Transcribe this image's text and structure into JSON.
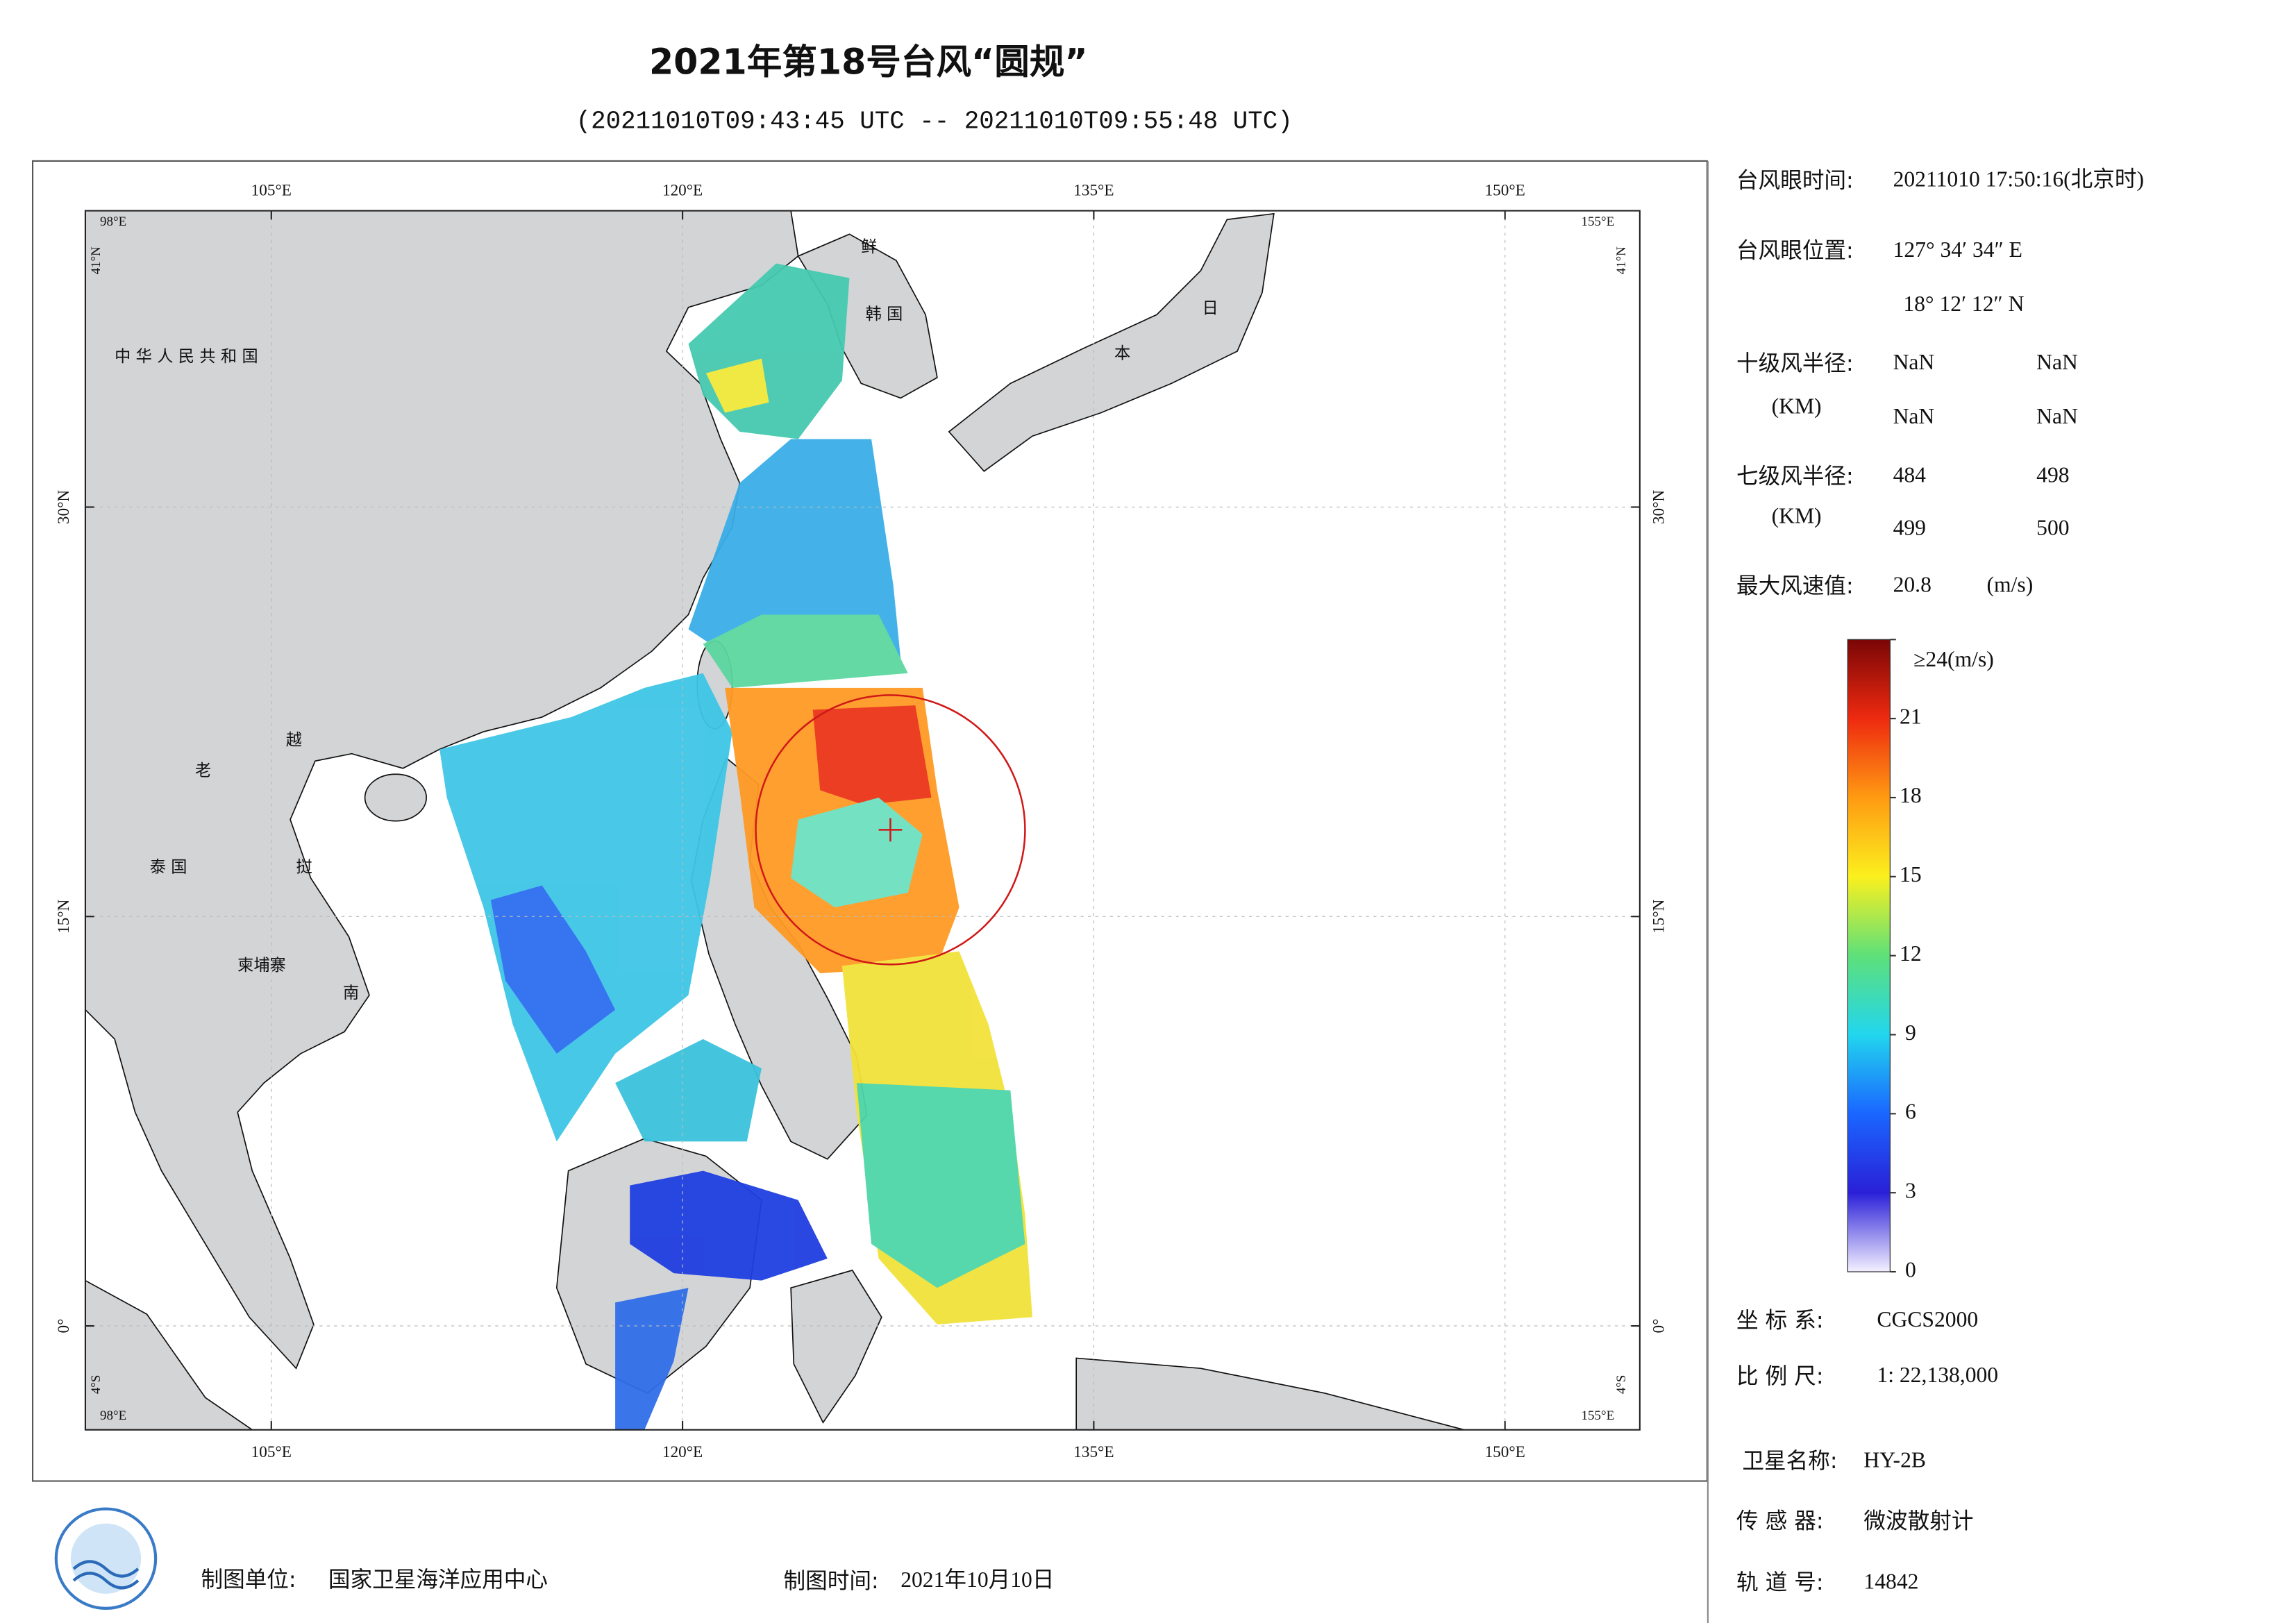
{
  "header": {
    "title": "2021年第18号台风“圆规”",
    "subtitle": "(20211010T09:43:45 UTC -- 20211010T09:55:48 UTC)"
  },
  "map": {
    "lon_ticks": [
      {
        "value": 105,
        "label": "105°E"
      },
      {
        "value": 120,
        "label": "120°E"
      },
      {
        "value": 135,
        "label": "135°E"
      },
      {
        "value": 150,
        "label": "150°E"
      }
    ],
    "lat_ticks": [
      {
        "value": 30,
        "label": "30°N"
      },
      {
        "value": 15,
        "label": "15°N"
      },
      {
        "value": 0,
        "label": "0°"
      }
    ],
    "corner_labels": {
      "west": "98°E",
      "east": "155°E",
      "north": "41°N",
      "south": "4°S"
    },
    "place_labels": [
      "中 华 人 民 共 和 国",
      "老",
      "越",
      "泰  国",
      "挝",
      "柬埔寨",
      "南",
      "鲜",
      "韩  国",
      "日",
      "本"
    ]
  },
  "colorbar": {
    "min": 0,
    "max": 24,
    "ticks": [
      0,
      3,
      6,
      9,
      12,
      15,
      18,
      21,
      {
        "value": 24,
        "label": "≥24(m/s)"
      }
    ],
    "colors": [
      "#f4f0ff",
      "#2a20d8",
      "#1a66ff",
      "#22d6ee",
      "#5ee07a",
      "#fbf01e",
      "#ff9a12",
      "#ee2a10",
      "#7a0606"
    ]
  },
  "info": {
    "eye_time": {
      "label": "台风眼时间:",
      "value": "20211010 17:50:16(北京时)"
    },
    "eye_position": {
      "label": "台风眼位置:",
      "lon": "127° 34′ 34″ E",
      "lat": "18° 12′ 12″ N"
    },
    "r10": {
      "label": "十级风半径:",
      "unit": "(KM)",
      "values": [
        "NaN",
        "NaN",
        "NaN",
        "NaN"
      ]
    },
    "r7": {
      "label": "七级风半径:",
      "unit": "(KM)",
      "values": [
        484,
        498,
        499,
        500
      ]
    },
    "max_wind": {
      "label": "最大风速值:",
      "value": 20.8,
      "unit": "(m/s)"
    },
    "crs": {
      "label": "坐 标 系:",
      "value": "CGCS2000"
    },
    "scale": {
      "label": "比 例 尺:",
      "value": "1: 22,138,000"
    },
    "satellite": {
      "label": "卫星名称:",
      "value": "HY-2B"
    },
    "sensor": {
      "label": "传 感 器:",
      "value": "微波散射计"
    },
    "orbit": {
      "label": "轨 道 号:",
      "value": 14842
    }
  },
  "footer": {
    "producer": {
      "label": "制图单位:",
      "value": "国家卫星海洋应用中心"
    },
    "date": {
      "label": "制图时间:",
      "value": "2021年10月10日"
    }
  }
}
